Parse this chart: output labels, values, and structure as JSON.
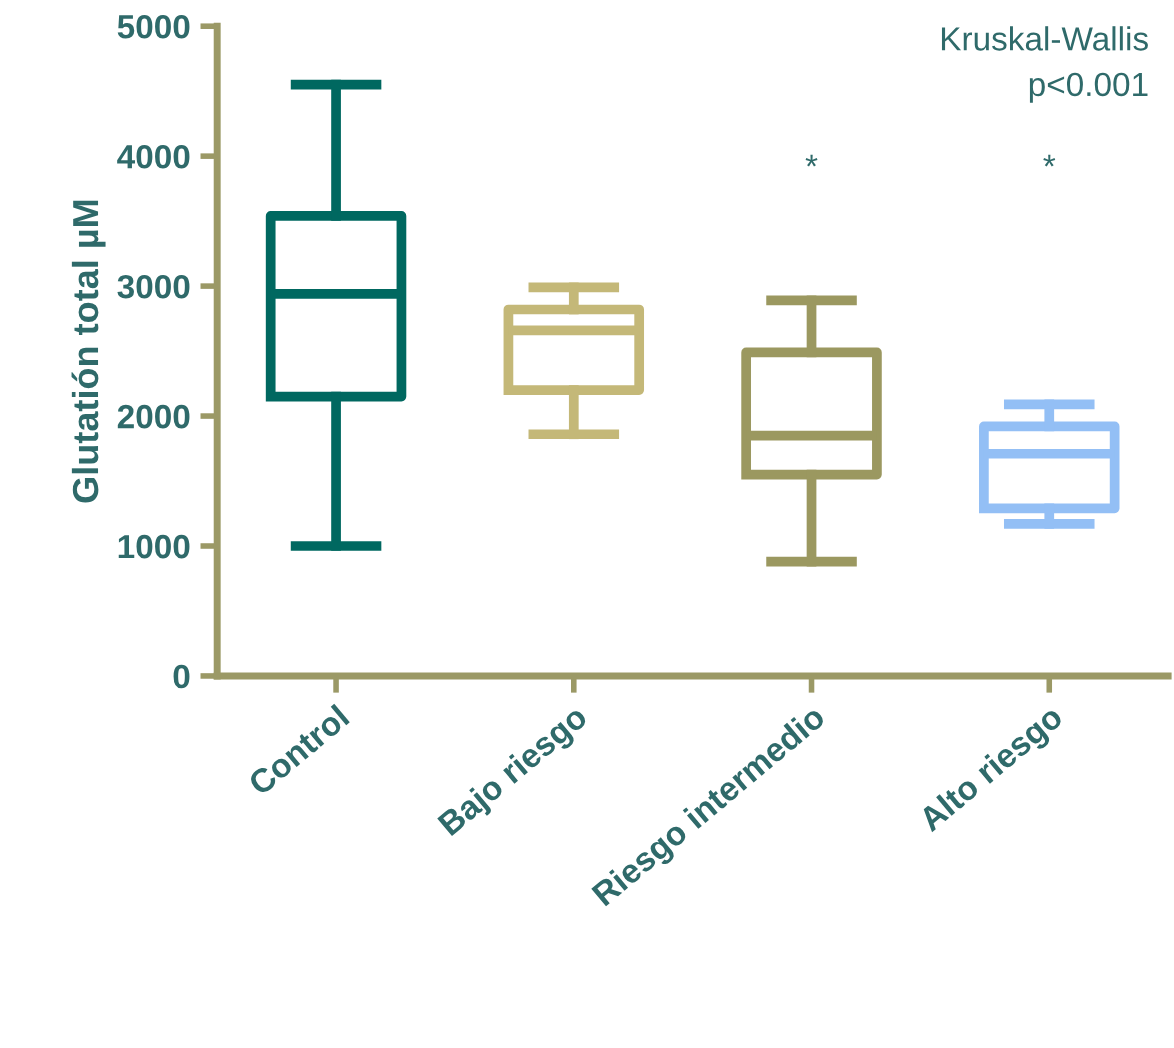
{
  "chart_data": {
    "type": "box",
    "ylabel": "Glutatión total µM",
    "categories": [
      "Control",
      "Bajo riesgo",
      "Riesgo intermedio",
      "Alto riesgo"
    ],
    "colors": [
      "#006860",
      "#c4b878",
      "#9b9860",
      "#93bff5"
    ],
    "boxes": [
      {
        "low": 1000,
        "q1": 2150,
        "median": 2940,
        "q3": 3540,
        "high": 4550
      },
      {
        "low": 1860,
        "q1": 2200,
        "median": 2660,
        "q3": 2820,
        "high": 2990
      },
      {
        "low": 880,
        "q1": 1550,
        "median": 1850,
        "q3": 2490,
        "high": 2890
      },
      {
        "low": 1170,
        "q1": 1290,
        "median": 1710,
        "q3": 1920,
        "high": 2090
      }
    ],
    "ylim": [
      0,
      5000
    ],
    "yticks": [
      0,
      1000,
      2000,
      3000,
      4000,
      5000
    ],
    "grid": false,
    "legend": false,
    "annotations": [
      "Kruskal-Wallis\np<0.001",
      "*",
      "*"
    ]
  }
}
